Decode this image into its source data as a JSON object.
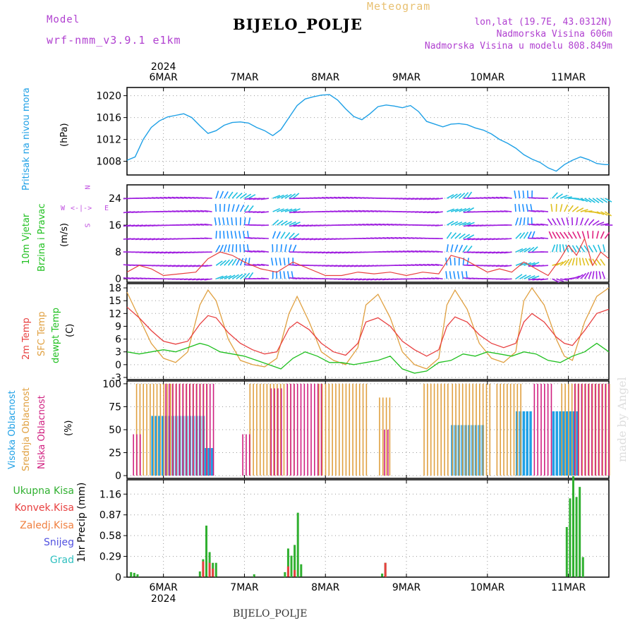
{
  "header": {
    "model_label": "Model",
    "model_name": "wrf-nmm_v3.9.1 e1km",
    "meteogram": "Meteogram",
    "station": "BIJELO_POLJE",
    "lonlat": "lon,lat (19.7E, 43.0312N)",
    "elevation": "Nadmorska Visina 606m",
    "model_elevation": "Nadmorska Visina u modelu 808.849m"
  },
  "footer": {
    "station": "BIJELO_POLJE",
    "watermark": "made by Angel"
  },
  "colors": {
    "pressure": "#1ea0e6",
    "temp2m": "#e84040",
    "sfc": "#e0a040",
    "dewpt": "#20c020",
    "high_cloud": "#1ea0e6",
    "mid_cloud": "#e0a040",
    "low_cloud": "#d02080",
    "total_precip": "#30b030",
    "convective": "#e84040",
    "wind_arrow": "#a020e0"
  },
  "chart_data": [
    {
      "type": "line",
      "title": "Pritisak na nivou mora",
      "ylabel": "(hPa)",
      "ylim": [
        1005.5,
        1021.5
      ],
      "yticks": [
        1008,
        1012,
        1016,
        1020
      ],
      "time_axis": {
        "start_day": 5.55,
        "end_day": 11.5,
        "top_year": "2024",
        "bottom_year": "2024",
        "day_labels": [
          "6MAR",
          "7MAR",
          "8MAR",
          "9MAR",
          "10MAR",
          "11MAR"
        ],
        "day_positions": [
          6,
          7,
          8,
          9,
          10,
          11
        ]
      },
      "series": [
        {
          "name": "Sea level pressure",
          "x": [
            5.55,
            5.65,
            5.75,
            5.85,
            5.95,
            6.05,
            6.15,
            6.25,
            6.35,
            6.45,
            6.55,
            6.65,
            6.75,
            6.85,
            6.95,
            7.05,
            7.15,
            7.25,
            7.35,
            7.45,
            7.55,
            7.65,
            7.75,
            7.85,
            7.95,
            8.05,
            8.15,
            8.25,
            8.35,
            8.45,
            8.55,
            8.65,
            8.75,
            8.85,
            8.95,
            9.05,
            9.15,
            9.25,
            9.35,
            9.45,
            9.55,
            9.65,
            9.75,
            9.85,
            9.95,
            10.05,
            10.15,
            10.25,
            10.35,
            10.45,
            10.55,
            10.65,
            10.75,
            10.85,
            10.95,
            11.05,
            11.15,
            11.25,
            11.35,
            11.45,
            11.5
          ],
          "y": [
            1008.2,
            1008.8,
            1012.0,
            1014.2,
            1015.4,
            1016.1,
            1016.4,
            1016.7,
            1016.0,
            1014.5,
            1013.1,
            1013.6,
            1014.6,
            1015.1,
            1015.2,
            1015.0,
            1014.2,
            1013.6,
            1012.7,
            1013.8,
            1016.0,
            1018.2,
            1019.4,
            1019.8,
            1020.1,
            1020.2,
            1019.2,
            1017.6,
            1016.2,
            1015.6,
            1016.7,
            1018.0,
            1018.3,
            1018.1,
            1017.8,
            1018.2,
            1017.1,
            1015.3,
            1014.8,
            1014.3,
            1014.8,
            1014.9,
            1014.7,
            1014.1,
            1013.7,
            1013.0,
            1012.0,
            1011.3,
            1010.4,
            1009.2,
            1008.4,
            1007.8,
            1006.8,
            1006.2,
            1007.4,
            1008.2,
            1008.8,
            1008.3,
            1007.6,
            1007.4,
            1007.4
          ]
        }
      ]
    },
    {
      "type": "line",
      "title": "10m Vjetar Brzina i Pravac",
      "ylabel": "(m/s)",
      "ylim": [
        -1,
        28
      ],
      "yticks": [
        0,
        8,
        16,
        24
      ],
      "compass": {
        "n": "N",
        "s": "S",
        "e": "E",
        "w": "W"
      },
      "series": [
        {
          "name": "Brzina",
          "x": [
            5.55,
            5.7,
            5.85,
            6.0,
            6.2,
            6.4,
            6.55,
            6.7,
            6.85,
            7.0,
            7.2,
            7.4,
            7.6,
            7.8,
            8.0,
            8.2,
            8.4,
            8.6,
            8.8,
            9.0,
            9.2,
            9.4,
            9.55,
            9.7,
            9.85,
            10.0,
            10.15,
            10.3,
            10.45,
            10.6,
            10.75,
            10.9,
            11.0,
            11.1,
            11.2,
            11.3,
            11.4,
            11.5
          ],
          "y": [
            2,
            4,
            3,
            1,
            1.5,
            2,
            6,
            8,
            7,
            5,
            3,
            2,
            5,
            3,
            1,
            1,
            2,
            1.5,
            2,
            1,
            2,
            1.5,
            7,
            6,
            4,
            2,
            3,
            2,
            5,
            3,
            1,
            6,
            10,
            7,
            12,
            4,
            8,
            6
          ]
        }
      ]
    },
    {
      "type": "line",
      "title": "2m Temp / SFC Temp / dewpt Temp",
      "ylabel": "(C)",
      "ylim": [
        -3.5,
        19
      ],
      "yticks": [
        -3,
        0,
        3,
        6,
        9,
        12,
        15,
        18
      ],
      "series": [
        {
          "name": "2m Temp",
          "x": [
            5.55,
            5.7,
            5.85,
            6.0,
            6.15,
            6.3,
            6.45,
            6.55,
            6.65,
            6.8,
            6.95,
            7.1,
            7.25,
            7.4,
            7.55,
            7.65,
            7.8,
            7.95,
            8.1,
            8.25,
            8.4,
            8.5,
            8.65,
            8.8,
            8.95,
            9.1,
            9.25,
            9.4,
            9.5,
            9.6,
            9.75,
            9.9,
            10.05,
            10.2,
            10.35,
            10.45,
            10.55,
            10.7,
            10.85,
            10.95,
            11.05,
            11.2,
            11.35,
            11.5
          ],
          "y": [
            13.5,
            11,
            8,
            5.5,
            4.8,
            5.5,
            9.5,
            11.5,
            11,
            7.5,
            5,
            3.5,
            2.5,
            3,
            8.5,
            10,
            8.2,
            5,
            3,
            2.2,
            5,
            10,
            11,
            9,
            5.5,
            3.5,
            2,
            3.5,
            9,
            11.2,
            10,
            7,
            5,
            4,
            5,
            10,
            12,
            10,
            6.5,
            5,
            4.5,
            8,
            12,
            13
          ]
        },
        {
          "name": "SFC Temp",
          "x": [
            5.55,
            5.7,
            5.85,
            6.0,
            6.15,
            6.3,
            6.45,
            6.55,
            6.65,
            6.8,
            6.95,
            7.1,
            7.25,
            7.4,
            7.55,
            7.65,
            7.8,
            7.95,
            8.1,
            8.25,
            8.4,
            8.5,
            8.65,
            8.8,
            8.95,
            9.1,
            9.25,
            9.4,
            9.5,
            9.6,
            9.75,
            9.9,
            10.05,
            10.2,
            10.35,
            10.45,
            10.55,
            10.7,
            10.85,
            10.95,
            11.05,
            11.2,
            11.35,
            11.5
          ],
          "y": [
            17,
            11,
            5,
            1.5,
            0.5,
            3,
            14,
            17.5,
            15,
            6,
            1,
            0,
            -0.5,
            1.5,
            12,
            16,
            10,
            3,
            1,
            0,
            4,
            14,
            16.5,
            11,
            3,
            0,
            -1,
            1.5,
            14,
            17.5,
            13,
            5,
            1.5,
            0.5,
            3,
            15,
            18,
            14,
            6,
            2,
            1,
            10,
            16,
            18
          ]
        },
        {
          "name": "dewpt Temp",
          "x": [
            5.55,
            5.7,
            5.85,
            6.0,
            6.15,
            6.3,
            6.45,
            6.55,
            6.7,
            6.85,
            7.0,
            7.15,
            7.3,
            7.45,
            7.6,
            7.75,
            7.9,
            8.05,
            8.2,
            8.35,
            8.5,
            8.65,
            8.8,
            8.95,
            9.1,
            9.25,
            9.4,
            9.55,
            9.7,
            9.85,
            10.0,
            10.15,
            10.3,
            10.45,
            10.6,
            10.75,
            10.9,
            11.05,
            11.2,
            11.35,
            11.5
          ],
          "y": [
            3,
            2.5,
            3,
            3.5,
            3,
            4,
            5,
            4.5,
            3,
            2.5,
            2,
            1,
            0,
            -1,
            1.5,
            3,
            2,
            0.5,
            0.5,
            0,
            0.5,
            1,
            2,
            -1,
            -2,
            -1.5,
            0.5,
            1,
            2.5,
            2,
            3,
            2.5,
            2,
            3,
            2.5,
            1,
            0.5,
            2,
            3,
            5,
            3
          ]
        }
      ]
    },
    {
      "type": "bar",
      "title": "Visoka / Srednja / Niska Oblacnost",
      "ylabel": "(%)",
      "ylim": [
        -3,
        103
      ],
      "yticks": [
        0,
        25,
        50,
        75,
        100
      ],
      "series": [
        {
          "name": "Visoka Oblacnost",
          "ranges": [
            [
              5.85,
              6.5,
              65
            ],
            [
              6.5,
              6.62,
              30
            ],
            [
              9.55,
              9.95,
              55
            ],
            [
              10.35,
              10.55,
              70
            ],
            [
              10.8,
              11.1,
              70
            ]
          ]
        },
        {
          "name": "Srednja Oblacnost",
          "ranges": [
            [
              5.65,
              6.1,
              100
            ],
            [
              6.1,
              6.55,
              100
            ],
            [
              7.05,
              7.6,
              100
            ],
            [
              7.9,
              8.5,
              100
            ],
            [
              8.65,
              8.8,
              85
            ],
            [
              9.2,
              9.5,
              100
            ],
            [
              9.55,
              10.05,
              100
            ],
            [
              10.1,
              10.4,
              100
            ],
            [
              10.9,
              11.5,
              100
            ]
          ]
        },
        {
          "name": "Niska Oblacnost",
          "ranges": [
            [
              5.6,
              5.7,
              45
            ],
            [
              6.0,
              6.6,
              100
            ],
            [
              6.95,
              7.05,
              45
            ],
            [
              7.3,
              7.45,
              95
            ],
            [
              7.5,
              7.95,
              100
            ],
            [
              8.7,
              8.78,
              50
            ],
            [
              10.55,
              10.8,
              100
            ],
            [
              11.05,
              11.5,
              100
            ]
          ]
        }
      ]
    },
    {
      "type": "bar",
      "title": "1hr Precip",
      "ylabel": "1hr Precip (mm)",
      "ylim": [
        0,
        1.36
      ],
      "yticks": [
        0,
        0.29,
        0.58,
        0.87,
        1.16
      ],
      "legend": [
        "Ukupna Kisa",
        "Konvek.Kisa",
        "Zaledj.Kisa",
        "Snijeg",
        "Grad"
      ],
      "series": [
        {
          "name": "Ukupna Kisa",
          "x": [
            5.6,
            5.64,
            5.68,
            6.45,
            6.49,
            6.53,
            6.57,
            6.61,
            6.65,
            7.12,
            7.5,
            7.54,
            7.58,
            7.62,
            7.66,
            7.7,
            8.7,
            8.74,
            10.98,
            11.02,
            11.06,
            11.1,
            11.14,
            11.18
          ],
          "y": [
            0.07,
            0.06,
            0.04,
            0.08,
            0.25,
            0.72,
            0.35,
            0.2,
            0.2,
            0.04,
            0.07,
            0.4,
            0.3,
            0.45,
            0.9,
            0.18,
            0.05,
            0.2,
            0.7,
            1.1,
            1.41,
            1.12,
            1.26,
            0.28
          ]
        },
        {
          "name": "Konvek.Kisa",
          "x": [
            6.49,
            6.57,
            6.61,
            7.54,
            7.62,
            8.74
          ],
          "y": [
            0.22,
            0.2,
            0.12,
            0.15,
            0.1,
            0.2
          ]
        }
      ]
    }
  ]
}
